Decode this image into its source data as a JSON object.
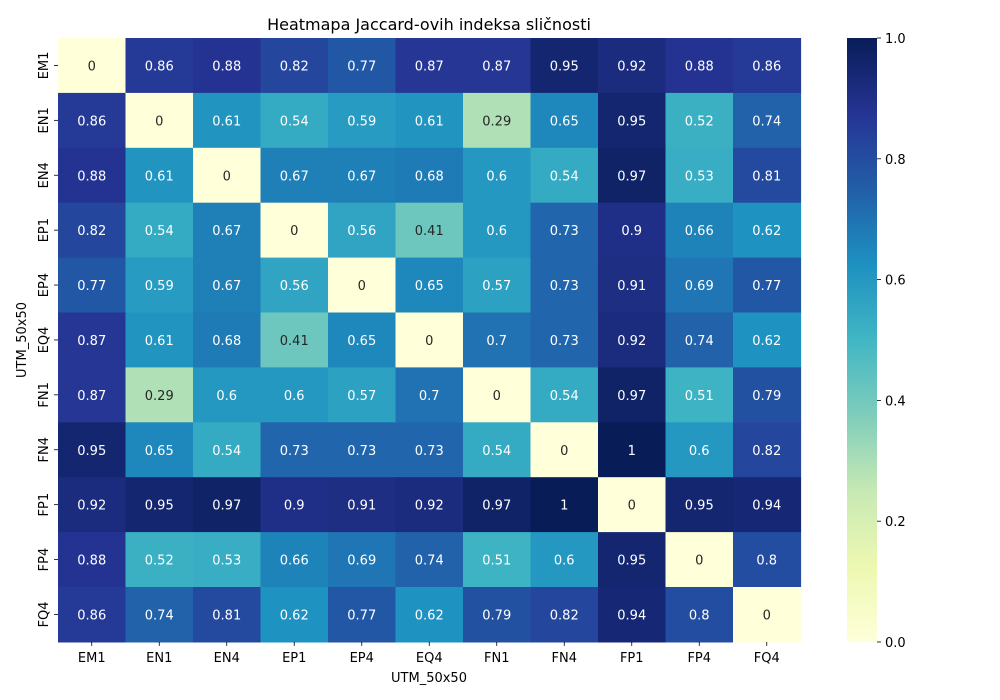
{
  "chart_data": {
    "type": "heatmap",
    "title": "Heatmapa Jaccard-ovih indeksa sličnosti",
    "xlabel": "UTM_50x50",
    "ylabel": "UTM_50x50",
    "categories": [
      "EM1",
      "EN1",
      "EN4",
      "EP1",
      "EP4",
      "EQ4",
      "FN1",
      "FN4",
      "FP1",
      "FP4",
      "FQ4"
    ],
    "matrix": [
      [
        0,
        0.86,
        0.88,
        0.82,
        0.77,
        0.87,
        0.87,
        0.95,
        0.92,
        0.88,
        0.86
      ],
      [
        0.86,
        0,
        0.61,
        0.54,
        0.59,
        0.61,
        0.29,
        0.65,
        0.95,
        0.52,
        0.74
      ],
      [
        0.88,
        0.61,
        0,
        0.67,
        0.67,
        0.68,
        0.6,
        0.54,
        0.97,
        0.53,
        0.81
      ],
      [
        0.82,
        0.54,
        0.67,
        0,
        0.56,
        0.41,
        0.6,
        0.73,
        0.9,
        0.66,
        0.62
      ],
      [
        0.77,
        0.59,
        0.67,
        0.56,
        0,
        0.65,
        0.57,
        0.73,
        0.91,
        0.69,
        0.77
      ],
      [
        0.87,
        0.61,
        0.68,
        0.41,
        0.65,
        0,
        0.7,
        0.73,
        0.92,
        0.74,
        0.62
      ],
      [
        0.87,
        0.29,
        0.6,
        0.6,
        0.57,
        0.7,
        0,
        0.54,
        0.97,
        0.51,
        0.79
      ],
      [
        0.95,
        0.65,
        0.54,
        0.73,
        0.73,
        0.73,
        0.54,
        0,
        1,
        0.6,
        0.82
      ],
      [
        0.92,
        0.95,
        0.97,
        0.9,
        0.91,
        0.92,
        0.97,
        1,
        0,
        0.95,
        0.94
      ],
      [
        0.88,
        0.52,
        0.53,
        0.66,
        0.69,
        0.74,
        0.51,
        0.6,
        0.95,
        0,
        0.8
      ],
      [
        0.86,
        0.74,
        0.81,
        0.62,
        0.77,
        0.62,
        0.79,
        0.82,
        0.94,
        0.8,
        0
      ]
    ],
    "value_range": [
      0,
      1
    ],
    "colormap": "YlGnBu",
    "colorbar_ticks": [
      "0.0",
      "0.2",
      "0.4",
      "0.6",
      "0.8",
      "1.0"
    ],
    "annotations": true,
    "grid": false,
    "legend": "colorbar-right"
  }
}
